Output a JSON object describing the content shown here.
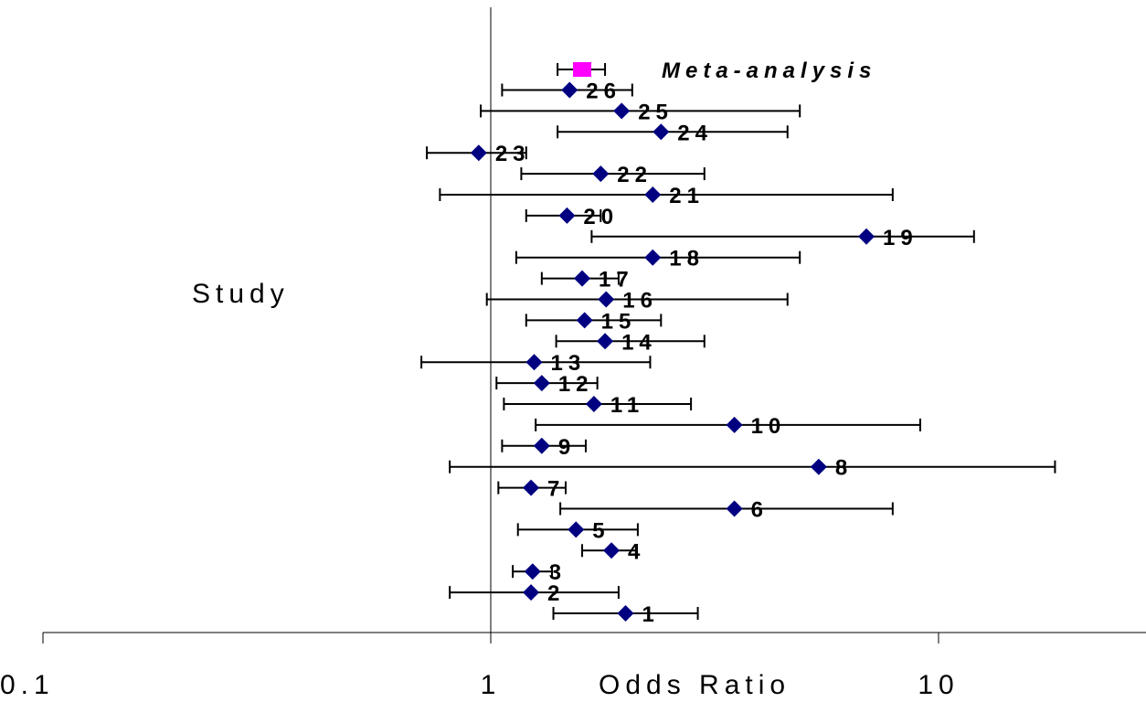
{
  "chart_data": {
    "type": "scatter",
    "subtype": "forest-plot",
    "xlabel": "Odds Ratio",
    "ylabel": "Study",
    "x_scale": "log",
    "xlim": [
      0.1,
      25
    ],
    "x_ticks": [
      {
        "value": 0.1,
        "label": "0.1"
      },
      {
        "value": 1,
        "label": "1"
      },
      {
        "value": 10,
        "label": "10"
      }
    ],
    "reference_line": 1,
    "grid": false,
    "colors": {
      "study_marker": "#000080",
      "meta_marker": "#ff00ff",
      "line": "#000000"
    },
    "studies": [
      {
        "label": "1",
        "or": 2.0,
        "ci": [
          1.38,
          2.9
        ]
      },
      {
        "label": "2",
        "or": 1.23,
        "ci": [
          0.81,
          1.93
        ]
      },
      {
        "label": "3",
        "or": 1.24,
        "ci": [
          1.12,
          1.37
        ]
      },
      {
        "label": "4",
        "or": 1.86,
        "ci": [
          1.6,
          2.11
        ]
      },
      {
        "label": "5",
        "or": 1.55,
        "ci": [
          1.15,
          2.13
        ]
      },
      {
        "label": "6",
        "or": 3.5,
        "ci": [
          1.43,
          7.9
        ]
      },
      {
        "label": "7",
        "or": 1.23,
        "ci": [
          1.04,
          1.47
        ]
      },
      {
        "label": "8",
        "or": 5.4,
        "ci": [
          0.81,
          18.2
        ]
      },
      {
        "label": "9",
        "or": 1.3,
        "ci": [
          1.06,
          1.63
        ]
      },
      {
        "label": "10",
        "or": 3.5,
        "ci": [
          1.26,
          9.1
        ]
      },
      {
        "label": "11",
        "or": 1.7,
        "ci": [
          1.07,
          2.8
        ]
      },
      {
        "label": "12",
        "or": 1.3,
        "ci": [
          1.03,
          1.73
        ]
      },
      {
        "label": "13",
        "or": 1.25,
        "ci": [
          0.7,
          2.27
        ]
      },
      {
        "label": "14",
        "or": 1.8,
        "ci": [
          1.4,
          3.0
        ]
      },
      {
        "label": "15",
        "or": 1.62,
        "ci": [
          1.2,
          2.4
        ]
      },
      {
        "label": "16",
        "or": 1.81,
        "ci": [
          0.98,
          4.6
        ]
      },
      {
        "label": "17",
        "or": 1.6,
        "ci": [
          1.3,
          1.93
        ]
      },
      {
        "label": "18",
        "or": 2.3,
        "ci": [
          1.14,
          4.9
        ]
      },
      {
        "label": "19",
        "or": 6.9,
        "ci": [
          1.68,
          12.0
        ]
      },
      {
        "label": "20",
        "or": 1.48,
        "ci": [
          1.2,
          1.76
        ]
      },
      {
        "label": "21",
        "or": 2.3,
        "ci": [
          0.77,
          7.9
        ]
      },
      {
        "label": "22",
        "or": 1.76,
        "ci": [
          1.17,
          3.0
        ]
      },
      {
        "label": "23",
        "or": 0.94,
        "ci": [
          0.72,
          1.2
        ]
      },
      {
        "label": "24",
        "or": 2.4,
        "ci": [
          1.41,
          4.6
        ]
      },
      {
        "label": "25",
        "or": 1.96,
        "ci": [
          0.95,
          4.9
        ]
      },
      {
        "label": "26",
        "or": 1.5,
        "ci": [
          1.06,
          2.07
        ]
      }
    ],
    "meta_analysis": {
      "label": "Meta-analysis",
      "or": 1.6,
      "ci": [
        1.41,
        1.8
      ]
    }
  }
}
